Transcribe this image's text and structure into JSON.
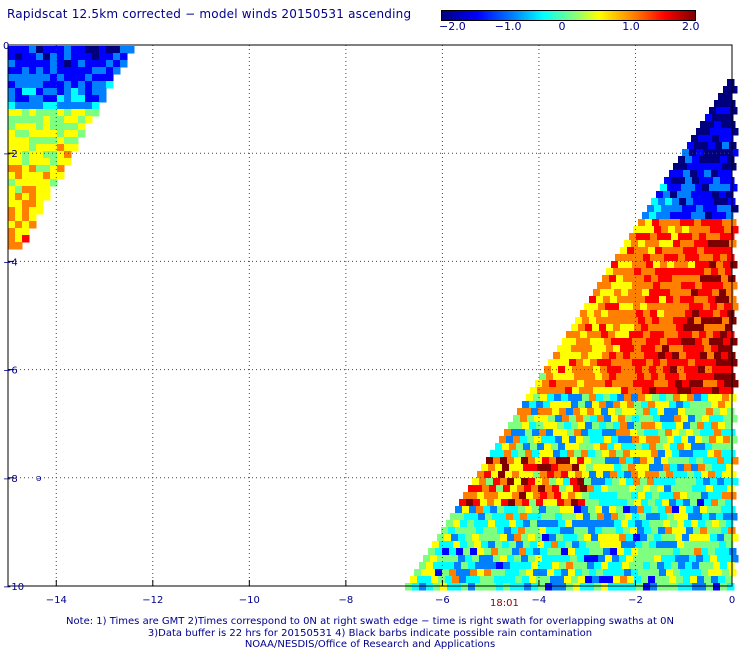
{
  "title": "Rapidscat 12.5km corrected − model winds 20150531 ascending",
  "colorbar": {
    "colors": [
      "#00007f",
      "#0000ff",
      "#007fff",
      "#00ffff",
      "#7fff7f",
      "#ffff00",
      "#ff7f00",
      "#ff0000",
      "#7f0000"
    ],
    "tick_labels": [
      "−2.0",
      "−1.0",
      "0",
      "1.0",
      "2.0"
    ],
    "range": [
      -2.0,
      2.0
    ]
  },
  "map": {
    "longitude_labels": [
      "−14",
      "−12",
      "−10",
      "−8",
      "−6",
      "−4",
      "−2",
      "0"
    ],
    "latitude_labels": [
      "0",
      "−2",
      "−4",
      "−6",
      "−8",
      "−10"
    ],
    "lon_range": [
      -15,
      0
    ],
    "lat_range": [
      -10,
      0
    ],
    "grid": true
  },
  "pass_time": "18:01",
  "notes": [
    "Note: 1) Times are GMT 2)Times correspond to 0N at right swath edge − time is right swath for overlapping swaths at 0N",
    "3)Data buffer is 22 hrs for 20150531 4) Black barbs indicate possible rain contamination",
    "NOAA/NESDIS/Office of Research and Applications"
  ]
}
